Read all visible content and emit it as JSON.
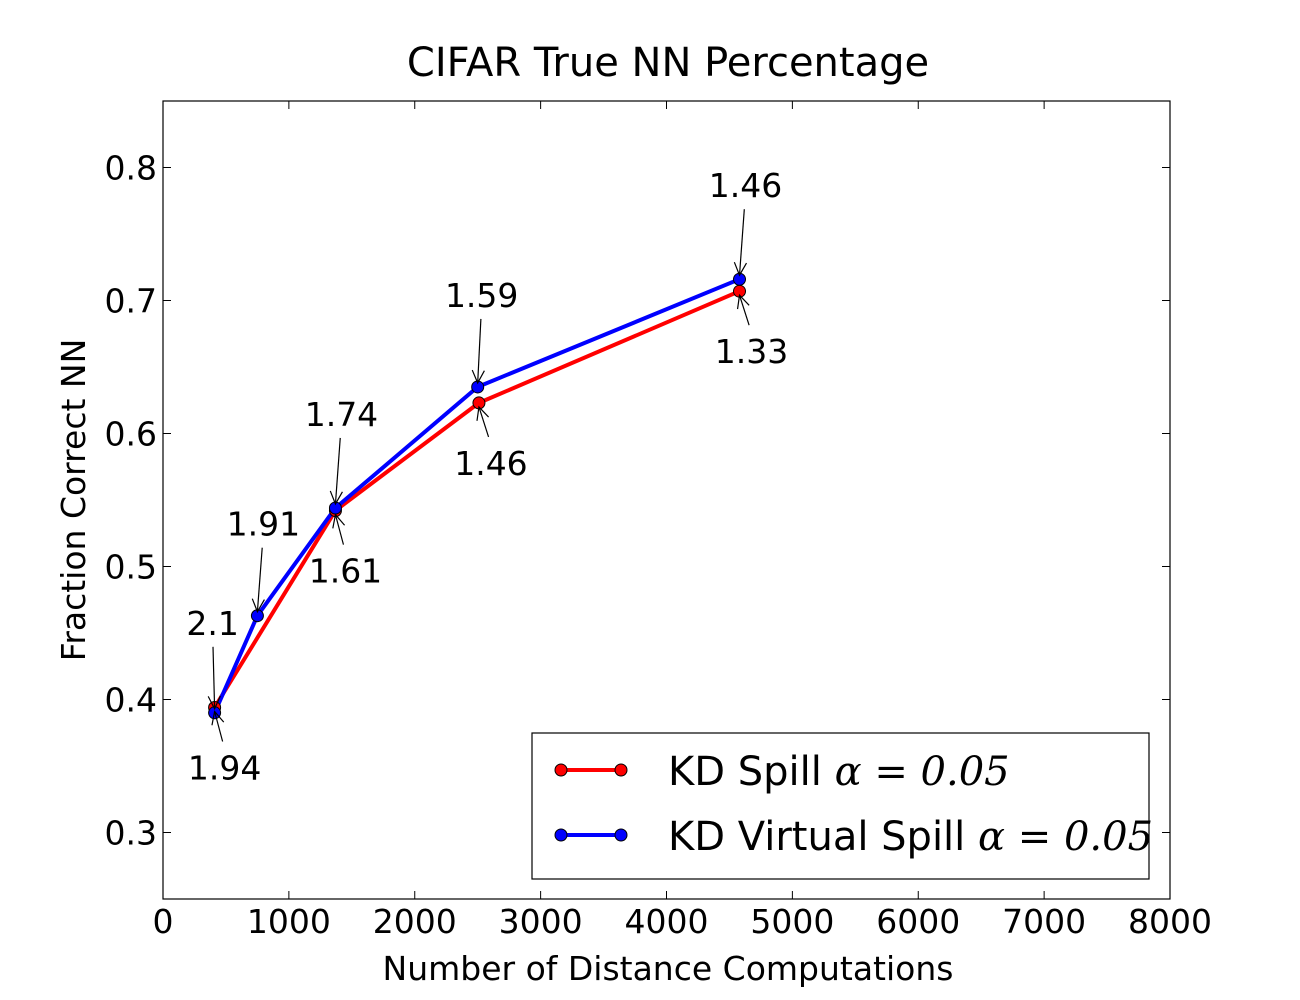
{
  "chart_data": {
    "type": "line",
    "title": "CIFAR True NN Percentage",
    "xlabel": "Number of Distance Computations",
    "ylabel": "Fraction Correct NN",
    "xlim": [
      0,
      8000
    ],
    "ylim": [
      0.25,
      0.85
    ],
    "x_ticks": [
      "0",
      "1000",
      "2000",
      "3000",
      "4000",
      "5000",
      "6000",
      "7000",
      "8000"
    ],
    "y_ticks": [
      "0.3",
      "0.4",
      "0.5",
      "0.6",
      "0.7",
      "0.8"
    ],
    "grid": false,
    "legend_position": "bottom-right",
    "series": [
      {
        "name": "KD Spill",
        "name_suffix": "α = 0.05",
        "color": "#ff0000",
        "points": [
          {
            "x": 410,
            "y": 0.394,
            "label": "1.94"
          },
          {
            "x": 1370,
            "y": 0.542,
            "label": "1.61"
          },
          {
            "x": 2510,
            "y": 0.623,
            "label": "1.46"
          },
          {
            "x": 4580,
            "y": 0.707,
            "label": "1.33"
          }
        ]
      },
      {
        "name": "KD Virtual Spill",
        "name_suffix": "α = 0.05",
        "color": "#0000ff",
        "points": [
          {
            "x": 410,
            "y": 0.39,
            "label": "2.1"
          },
          {
            "x": 750,
            "y": 0.463,
            "label": "1.91"
          },
          {
            "x": 1370,
            "y": 0.544,
            "label": "1.74"
          },
          {
            "x": 2500,
            "y": 0.635,
            "label": "1.59"
          },
          {
            "x": 4580,
            "y": 0.716,
            "label": "1.46"
          }
        ]
      }
    ]
  }
}
